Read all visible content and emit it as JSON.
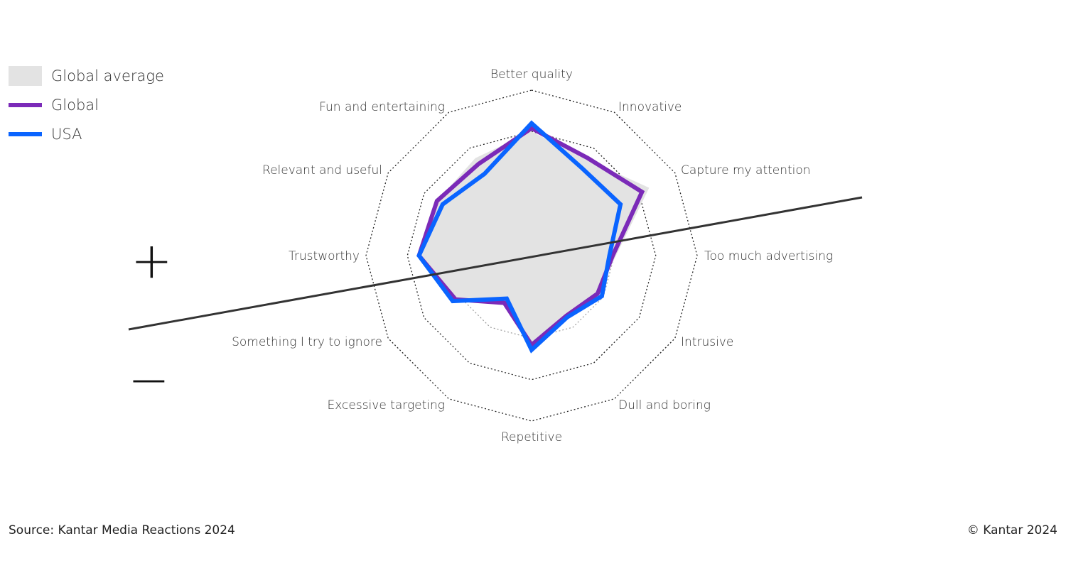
{
  "chart_data": {
    "type": "radar",
    "title": "",
    "categories": [
      "Better quality",
      "Innovative",
      "Capture my attention",
      "Too much advertising",
      "Intrusive",
      "Dull and boring",
      "Repetitive",
      "Excessive targeting",
      "Something I try to ignore",
      "Trustworthy",
      "Relevant and useful",
      "Fun and entertaining"
    ],
    "range": [
      0,
      100
    ],
    "grid_rings": [
      25,
      50,
      75,
      100
    ],
    "series": [
      {
        "name": "Global average",
        "style": "fill",
        "color": "#e3e3e3",
        "values": [
          75,
          67,
          82,
          51,
          46,
          42,
          54,
          33,
          53,
          67,
          66,
          68
        ]
      },
      {
        "name": "Global",
        "style": "line",
        "color": "#7b2ab8",
        "values": [
          77,
          68,
          77,
          49,
          46,
          42,
          54,
          33,
          53,
          68,
          66,
          64
        ]
      },
      {
        "name": "USA",
        "style": "line",
        "color": "#0a64ff",
        "values": [
          80,
          61,
          62,
          47,
          49,
          43,
          57,
          30,
          55,
          68,
          62,
          57
        ]
      }
    ],
    "legend_position": "top-left"
  },
  "legend": {
    "items": [
      {
        "label": "Global average",
        "color": "#e3e3e3"
      },
      {
        "label": "Global",
        "color": "#7b2ab8"
      },
      {
        "label": "USA",
        "color": "#0a64ff"
      }
    ]
  },
  "signs": {
    "positive": "+",
    "negative": "−"
  },
  "footer": {
    "source": "Source: Kantar Media Reactions 2024",
    "copyright": "© Kantar 2024"
  }
}
